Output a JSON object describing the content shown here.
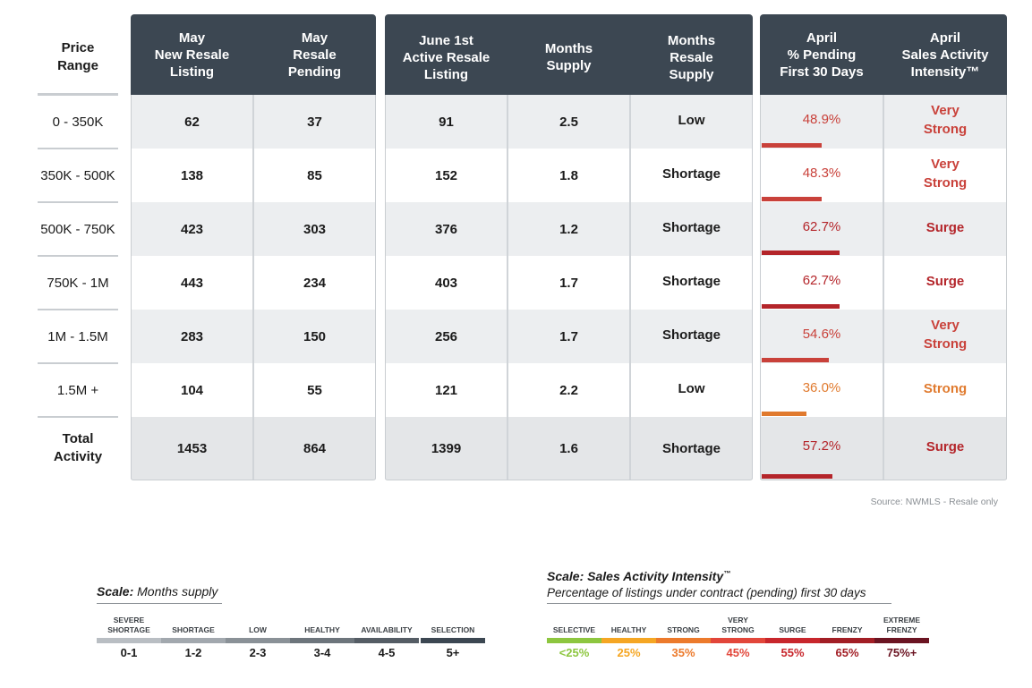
{
  "header": {
    "price_range": "Price\nRange",
    "cols": [
      "May\nNew Resale\nListing",
      "May\nResale\nPending",
      "June 1st\nActive Resale\nListing",
      "Months\nSupply",
      "Months\nResale\nSupply",
      "April\n% Pending\nFirst 30 Days",
      "April\nSales Activity\nIntensity™"
    ]
  },
  "rows": [
    {
      "range": "0 - 350K",
      "new": "62",
      "pending": "37",
      "active": "91",
      "supply": "2.5",
      "resale_supply": "Low",
      "pct": "48.9%",
      "pct_value": 48.9,
      "intensity": "Very\nStrong",
      "color": "#c9413a"
    },
    {
      "range": "350K - 500K",
      "new": "138",
      "pending": "85",
      "active": "152",
      "supply": "1.8",
      "resale_supply": "Shortage",
      "pct": "48.3%",
      "pct_value": 48.3,
      "intensity": "Very\nStrong",
      "color": "#c9413a"
    },
    {
      "range": "500K - 750K",
      "new": "423",
      "pending": "303",
      "active": "376",
      "supply": "1.2",
      "resale_supply": "Shortage",
      "pct": "62.7%",
      "pct_value": 62.7,
      "intensity": "Surge",
      "color": "#b4252a"
    },
    {
      "range": "750K - 1M",
      "new": "443",
      "pending": "234",
      "active": "403",
      "supply": "1.7",
      "resale_supply": "Shortage",
      "pct": "62.7%",
      "pct_value": 62.7,
      "intensity": "Surge",
      "color": "#b4252a"
    },
    {
      "range": "1M - 1.5M",
      "new": "283",
      "pending": "150",
      "active": "256",
      "supply": "1.7",
      "resale_supply": "Shortage",
      "pct": "54.6%",
      "pct_value": 54.6,
      "intensity": "Very\nStrong",
      "color": "#c9413a"
    },
    {
      "range": "1.5M +",
      "new": "104",
      "pending": "55",
      "active": "121",
      "supply": "2.2",
      "resale_supply": "Low",
      "pct": "36.0%",
      "pct_value": 36.0,
      "intensity": "Strong",
      "color": "#e07a2e"
    }
  ],
  "total": {
    "range": "Total\nActivity",
    "new": "1453",
    "pending": "864",
    "active": "1399",
    "supply": "1.6",
    "resale_supply": "Shortage",
    "pct": "57.2%",
    "pct_value": 57.2,
    "intensity": "Surge",
    "color": "#b4252a"
  },
  "source": "Source: NWMLS  -  Resale only",
  "months_scale": {
    "title_bold": "Scale:",
    "title_rest": " Months supply",
    "items": [
      {
        "label": "SEVERE\nSHORTAGE",
        "range": "0-1",
        "color": "#b9bec3"
      },
      {
        "label": "SHORTAGE",
        "range": "1-2",
        "color": "#a2a8ae"
      },
      {
        "label": "LOW",
        "range": "2-3",
        "color": "#8a9197"
      },
      {
        "label": "HEALTHY",
        "range": "3-4",
        "color": "#6d757c"
      },
      {
        "label": "AVAILABILITY",
        "range": "4-5",
        "color": "#555d65"
      },
      {
        "label": "SELECTION",
        "range": "5+",
        "color": "#3c4752"
      }
    ]
  },
  "intensity_scale": {
    "title": "Scale: Sales Activity Intensity",
    "title_mark": "™",
    "subtitle": "Percentage of listings under contract (pending) first 30 days",
    "items": [
      {
        "label": "SELECTIVE",
        "range": "<25%",
        "color": "#8dc63f"
      },
      {
        "label": "HEALTHY",
        "range": "25%",
        "color": "#f5a623"
      },
      {
        "label": "STRONG",
        "range": "35%",
        "color": "#ec7a2c"
      },
      {
        "label": "VERY\nSTRONG",
        "range": "45%",
        "color": "#e2463a"
      },
      {
        "label": "SURGE",
        "range": "55%",
        "color": "#c8262c"
      },
      {
        "label": "FRENZY",
        "range": "65%",
        "color": "#a21e25"
      },
      {
        "label": "EXTREME\nFRENZY",
        "range": "75%+",
        "color": "#6b1422"
      }
    ]
  }
}
